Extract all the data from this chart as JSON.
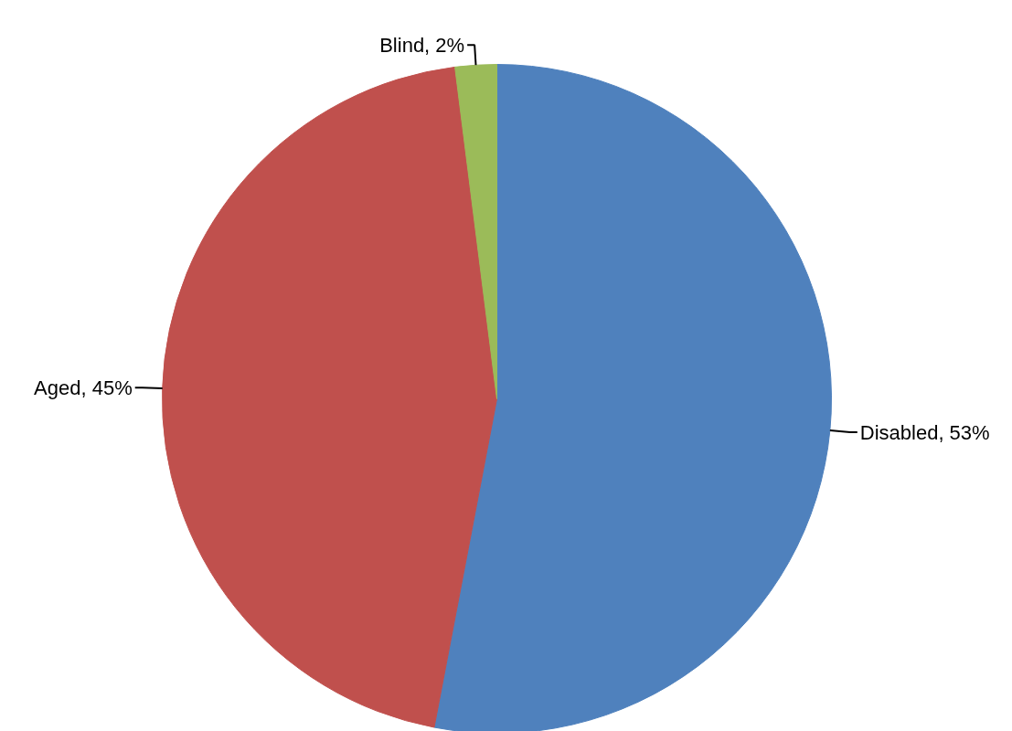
{
  "chart_data": {
    "type": "pie",
    "categories": [
      "Disabled",
      "Aged",
      "Blind"
    ],
    "values": [
      53,
      45,
      2
    ],
    "colors": [
      "#4f81bd",
      "#c0504d",
      "#9bbb59"
    ],
    "value_labels": [
      "53%",
      "45%",
      "2%"
    ]
  }
}
